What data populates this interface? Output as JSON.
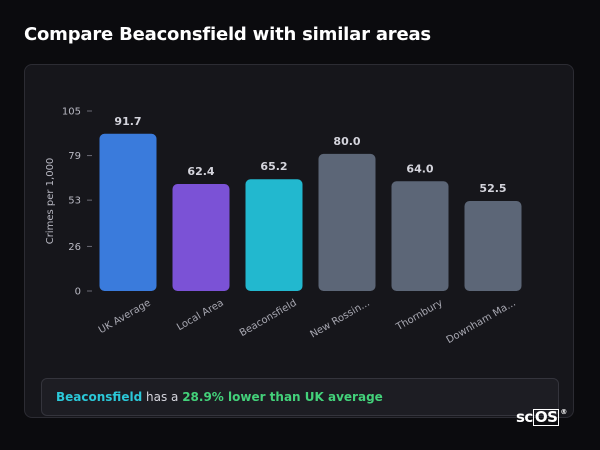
{
  "page": {
    "title": "Compare Beaconsfield with similar areas"
  },
  "chart_data": {
    "type": "bar",
    "ylabel": "Crimes per 1,000",
    "ylim": [
      0,
      105
    ],
    "yticks": [
      0,
      26,
      53,
      79,
      105
    ],
    "categories": [
      "UK Average",
      "Local Area",
      "Beaconsfield",
      "New Rossin...",
      "Thornbury",
      "Downham Ma..."
    ],
    "values": [
      91.7,
      62.4,
      65.2,
      80.0,
      64.0,
      52.5
    ],
    "value_labels": [
      "91.7",
      "62.4",
      "65.2",
      "80.0",
      "64.0",
      "52.5"
    ],
    "colors": [
      "#3a7bdc",
      "#7b52d6",
      "#22b8cf",
      "#5c6677",
      "#5c6677",
      "#5c6677"
    ],
    "grid": false,
    "legend": "none"
  },
  "summary": {
    "place": "Beaconsfield",
    "middle": " has a ",
    "highlight": "28.9% lower than UK average"
  },
  "logo": {
    "prefix": "sc",
    "boxed": "OS",
    "mark": "®"
  }
}
